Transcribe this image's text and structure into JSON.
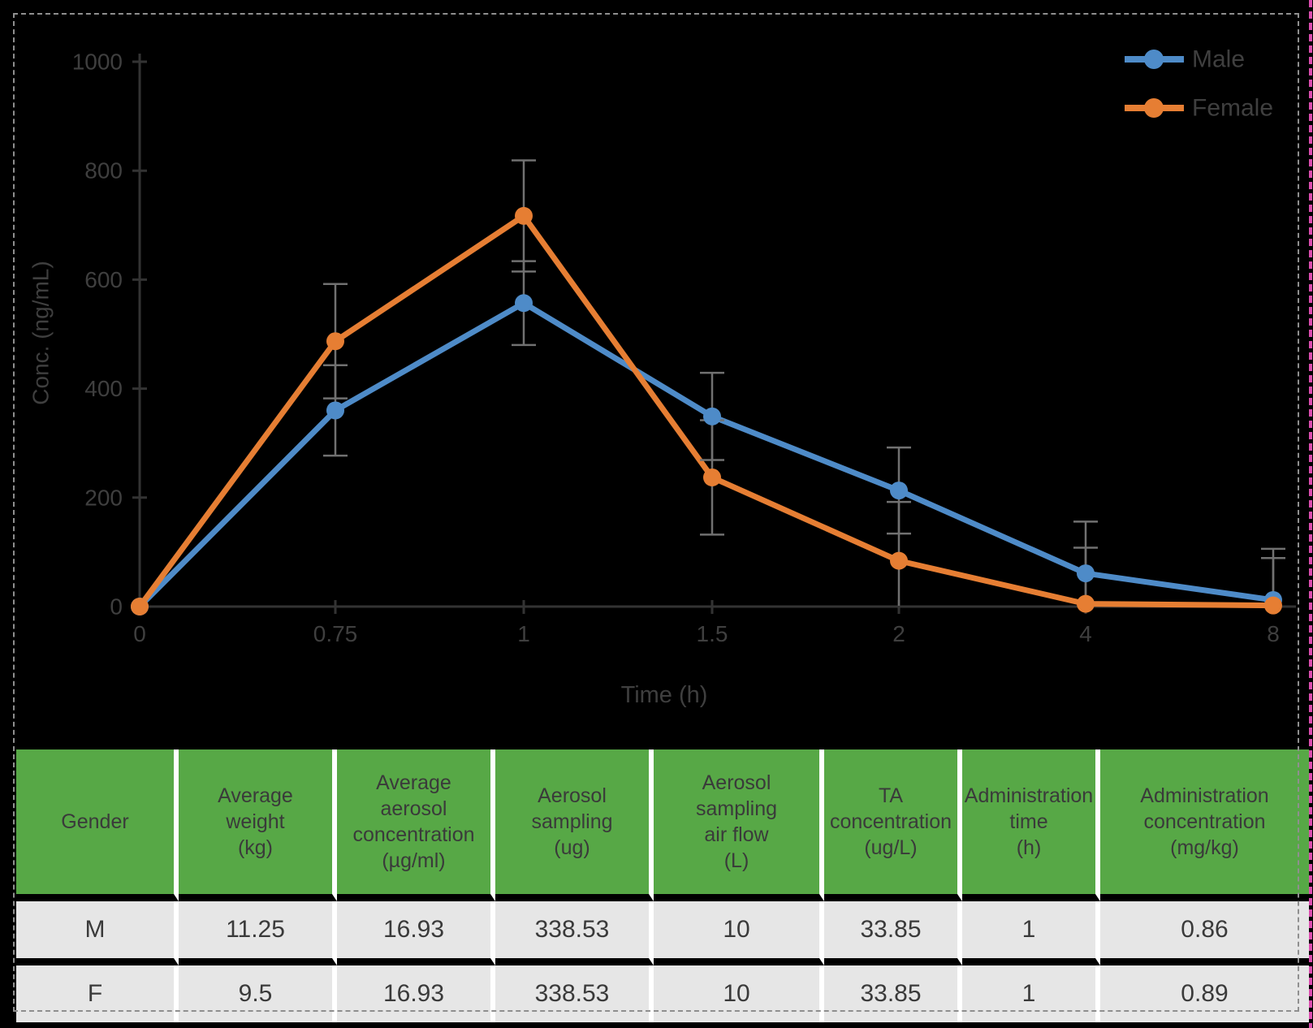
{
  "canvas": {
    "background": "#000000",
    "selection_border_color": "#8f8f8f",
    "edge_guide_color": "#DC4DB0"
  },
  "chart_data": {
    "type": "line",
    "title": "",
    "xlabel": "Time (h)",
    "ylabel": "Conc. (ng/mL)",
    "x_axis_type": "category",
    "categories": [
      "0",
      "0.75",
      "1",
      "1.5",
      "2",
      "4",
      "8"
    ],
    "y_ticks": [
      0,
      200,
      400,
      600,
      800,
      1000
    ],
    "ylim": [
      0,
      1000
    ],
    "grid": false,
    "legend_position": "top-right",
    "series": [
      {
        "name": "Male",
        "color": "#4E8BC8",
        "values": [
          0,
          360,
          557,
          349,
          213,
          61,
          12
        ],
        "errors": [
          0,
          83,
          77,
          80,
          79,
          95,
          94
        ]
      },
      {
        "name": "Female",
        "color": "#E67E33",
        "values": [
          0,
          487,
          717,
          237,
          84,
          5,
          2
        ],
        "errors": [
          0,
          105,
          102,
          105,
          108,
          103,
          87
        ]
      }
    ],
    "error_bar_color": "#717171",
    "axis_color": "#333333",
    "text_color": "#3F3F3F"
  },
  "table": {
    "header_bg": "#57A846",
    "row_bg": "#E6E6E6",
    "text_color": "#3A3A3A",
    "columns": [
      "Gender",
      "Average\nweight\n(kg)",
      "Average\naerosol\nconcentration\n(µg/ml)",
      "Aerosol\nsampling\n(ug)",
      "Aerosol\nsampling\nair flow\n(L)",
      "TA\nconcentration\n(ug/L)",
      "Administration\ntime\n(h)",
      "Administration\nconcentration\n(mg/kg)"
    ],
    "rows": [
      {
        "cells": [
          "M",
          "11.25",
          "16.93",
          "338.53",
          "10",
          "33.85",
          "1",
          "0.86"
        ]
      },
      {
        "cells": [
          "F",
          "9.5",
          "16.93",
          "338.53",
          "10",
          "33.85",
          "1",
          "0.89"
        ]
      }
    ]
  }
}
